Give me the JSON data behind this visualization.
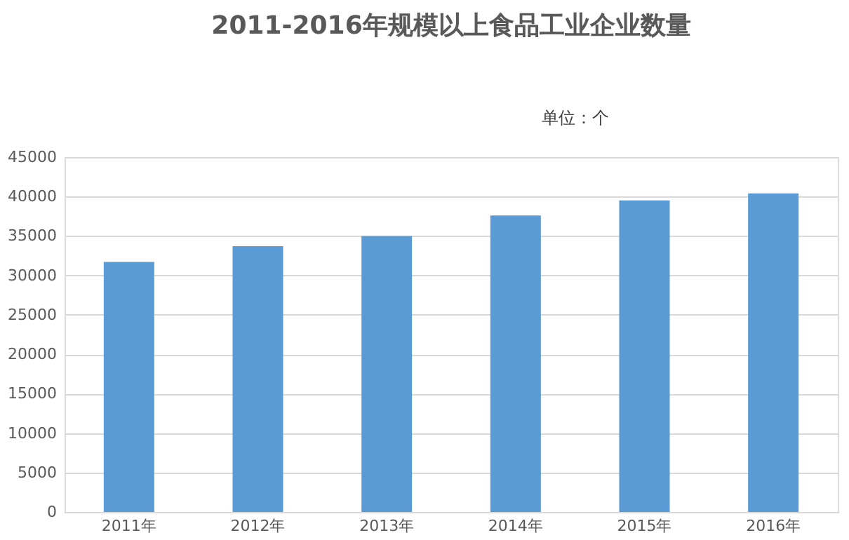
{
  "chart_data": {
    "type": "bar",
    "title": "2011-2016年规模以上食品工业企业数量",
    "annotations": [
      "单位：个"
    ],
    "categories": [
      "2011年",
      "2012年",
      "2013年",
      "2014年",
      "2015年",
      "2016年"
    ],
    "values": [
      31700,
      33700,
      35000,
      37600,
      39500,
      40400
    ],
    "color": "#5b9bd5",
    "ylim": [
      0,
      45000
    ],
    "yticks": [
      0,
      5000,
      10000,
      15000,
      20000,
      25000,
      30000,
      35000,
      40000,
      45000
    ],
    "grid": "y"
  }
}
